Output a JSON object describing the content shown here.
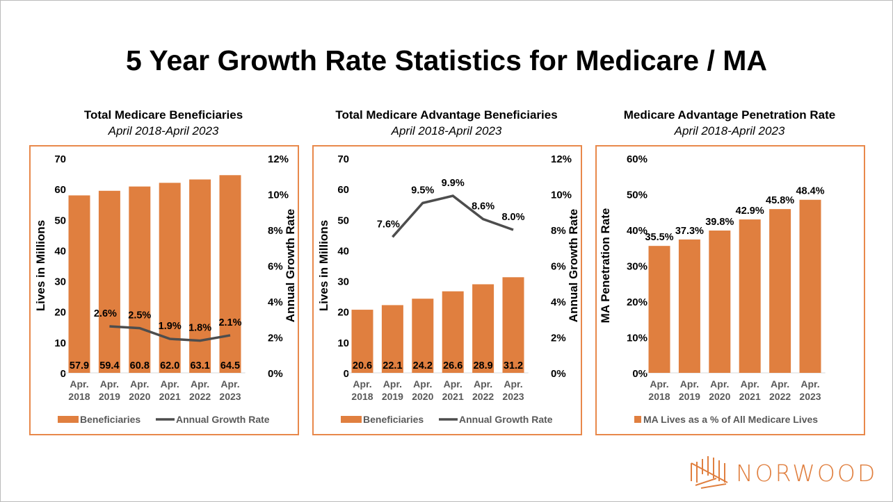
{
  "title": "5 Year Growth Rate Statistics for Medicare / MA",
  "brand": "NORWOOD",
  "colors": {
    "bar": "#E07F3F",
    "line": "#4D4D4D",
    "border": "#E8884A"
  },
  "chart_data": [
    {
      "type": "bar+line",
      "title": "Total Medicare Beneficiaries",
      "subtitle": "April 2018-April 2023",
      "categories": [
        [
          "Apr.",
          "2018"
        ],
        [
          "Apr.",
          "2019"
        ],
        [
          "Apr.",
          "2020"
        ],
        [
          "Apr.",
          "2021"
        ],
        [
          "Apr.",
          "2022"
        ],
        [
          "Apr.",
          "2023"
        ]
      ],
      "bar_series": {
        "name": "Beneficiaries",
        "values": [
          57.9,
          59.4,
          60.8,
          62.0,
          63.1,
          64.5
        ],
        "labels": [
          "57.9",
          "59.4",
          "60.8",
          "62.0",
          "63.1",
          "64.5"
        ]
      },
      "line_series": {
        "name": "Annual Growth Rate",
        "values": [
          null,
          2.6,
          2.5,
          1.9,
          1.8,
          2.1
        ],
        "labels": [
          "",
          "2.6%",
          "2.5%",
          "1.9%",
          "1.8%",
          "2.1%"
        ]
      },
      "ylabel": "Lives in Millions",
      "ylim": [
        0,
        70
      ],
      "yticks": [
        "0",
        "10",
        "20",
        "30",
        "40",
        "50",
        "60",
        "70"
      ],
      "y2label": "Annual Growth Rate",
      "y2lim": [
        0,
        12
      ],
      "y2ticks": [
        "0%",
        "2%",
        "4%",
        "6%",
        "8%",
        "10%",
        "12%"
      ],
      "legend": "bottom"
    },
    {
      "type": "bar+line",
      "title": "Total Medicare Advantage Beneficiaries",
      "subtitle": "April 2018-April 2023",
      "categories": [
        [
          "Apr.",
          "2018"
        ],
        [
          "Apr.",
          "2019"
        ],
        [
          "Apr.",
          "2020"
        ],
        [
          "Apr.",
          "2021"
        ],
        [
          "Apr.",
          "2022"
        ],
        [
          "Apr.",
          "2023"
        ]
      ],
      "bar_series": {
        "name": "Beneficiaries",
        "values": [
          20.6,
          22.1,
          24.2,
          26.6,
          28.9,
          31.2
        ],
        "labels": [
          "20.6",
          "22.1",
          "24.2",
          "26.6",
          "28.9",
          "31.2"
        ]
      },
      "line_series": {
        "name": "Annual Growth Rate",
        "values": [
          null,
          7.6,
          9.5,
          9.9,
          8.6,
          8.0
        ],
        "labels": [
          "",
          "7.6%",
          "9.5%",
          "9.9%",
          "8.6%",
          "8.0%"
        ]
      },
      "ylabel": "Lives in Millions",
      "ylim": [
        0,
        70
      ],
      "yticks": [
        "0",
        "10",
        "20",
        "30",
        "40",
        "50",
        "60",
        "70"
      ],
      "y2label": "Annual Growth Rate",
      "y2lim": [
        0,
        12
      ],
      "y2ticks": [
        "0%",
        "2%",
        "4%",
        "6%",
        "8%",
        "10%",
        "12%"
      ],
      "legend": "bottom"
    },
    {
      "type": "bar",
      "title": "Medicare Advantage Penetration Rate",
      "subtitle": "April 2018-April 2023",
      "categories": [
        [
          "Apr.",
          "2018"
        ],
        [
          "Apr.",
          "2019"
        ],
        [
          "Apr.",
          "2020"
        ],
        [
          "Apr.",
          "2021"
        ],
        [
          "Apr.",
          "2022"
        ],
        [
          "Apr.",
          "2023"
        ]
      ],
      "bar_series": {
        "name": "MA Lives as a % of All Medicare Lives",
        "values": [
          35.5,
          37.3,
          39.8,
          42.9,
          45.8,
          48.4
        ],
        "labels": [
          "35.5%",
          "37.3%",
          "39.8%",
          "42.9%",
          "45.8%",
          "48.4%"
        ]
      },
      "ylabel": "MA Penetration Rate",
      "ylim": [
        0,
        60
      ],
      "yticks": [
        "0%",
        "10%",
        "20%",
        "30%",
        "40%",
        "50%",
        "60%"
      ],
      "legend": "bottom"
    }
  ]
}
